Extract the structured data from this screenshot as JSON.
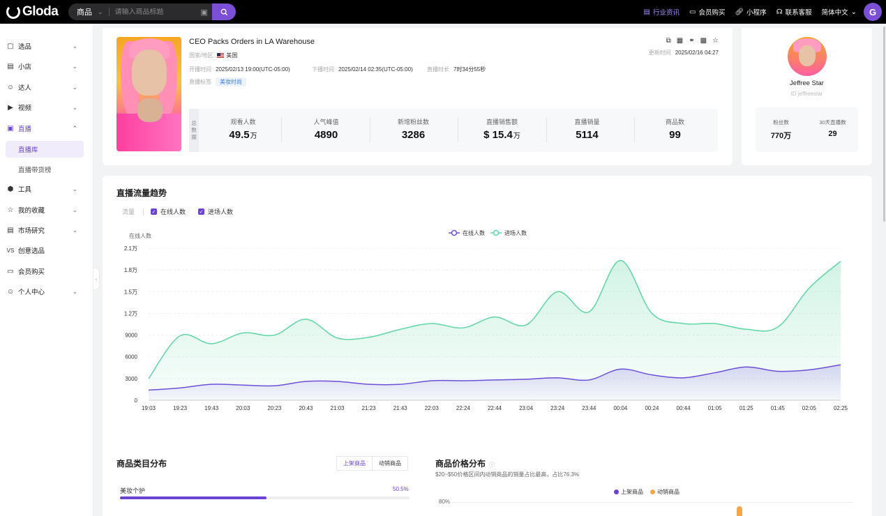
{
  "header": {
    "logo_text": "Gloda",
    "search_category": "商品",
    "search_placeholder": "请输入商品标题",
    "nav": [
      {
        "label": "行业资讯",
        "icon": "news-icon"
      },
      {
        "label": "会员购买",
        "icon": "card-icon"
      },
      {
        "label": "小程序",
        "icon": "link-icon"
      },
      {
        "label": "联系客服",
        "icon": "headset-icon"
      },
      {
        "label": "简体中文",
        "icon": "chevron-down-icon"
      }
    ],
    "avatar_letter": "G",
    "accent_color": "#6b43d2"
  },
  "sidebar": {
    "items": [
      {
        "label": "选品",
        "icon": "select-icon",
        "expandable": true
      },
      {
        "label": "小店",
        "icon": "shop-icon",
        "expandable": true
      },
      {
        "label": "达人",
        "icon": "user-icon",
        "expandable": true
      },
      {
        "label": "视频",
        "icon": "video-icon",
        "expandable": true
      },
      {
        "label": "直播",
        "icon": "live-icon",
        "expandable": true,
        "expanded": true
      },
      {
        "label": "工具",
        "icon": "tool-icon",
        "expandable": true
      },
      {
        "label": "我的收藏",
        "icon": "star-icon",
        "expandable": true
      },
      {
        "label": "市场研究",
        "icon": "research-icon",
        "expandable": true
      },
      {
        "label": "创意选品",
        "icon": "vs-icon",
        "expandable": false
      },
      {
        "label": "会员购买",
        "icon": "card-icon",
        "expandable": false
      },
      {
        "label": "个人中心",
        "icon": "smile-icon",
        "expandable": true
      }
    ],
    "sub_items": [
      "直播库",
      "直播带货榜"
    ],
    "active_sub": "直播库"
  },
  "live": {
    "title": "CEO Packs Orders in LA Warehouse",
    "country_label": "国家/地区",
    "country": "美国",
    "start_label": "开播时间",
    "start": "2025/02/13 19:00(UTC-05:00)",
    "end_label": "下播时间",
    "end": "2025/02/14 02:35(UTC-05:00)",
    "duration_label": "直播时长",
    "duration": "7时34分55秒",
    "tag_label": "直播标签",
    "tag": "美妆时尚",
    "update_label": "更新时间",
    "update": "2025/02/16 04:27",
    "stats_side": "总数据",
    "stats": [
      {
        "label": "观看人数",
        "value": "49.5",
        "unit": "万",
        "prefix": ""
      },
      {
        "label": "人气峰值",
        "value": "4890",
        "unit": "",
        "prefix": ""
      },
      {
        "label": "新增粉丝数",
        "value": "3286",
        "unit": "",
        "prefix": ""
      },
      {
        "label": "直播销售额",
        "value": "15.4",
        "unit": "万",
        "prefix": "$"
      },
      {
        "label": "直播销量",
        "value": "5114",
        "unit": "",
        "prefix": ""
      },
      {
        "label": "商品数",
        "value": "99",
        "unit": "",
        "prefix": ""
      }
    ]
  },
  "profile": {
    "name": "Jeffree Star",
    "id": "ID jeffreestar",
    "stats": [
      {
        "label": "粉丝数",
        "value": "770万"
      },
      {
        "label": "30天直播数",
        "value": "29"
      }
    ]
  },
  "trend": {
    "title": "直播流量趋势",
    "filter_label": "流量",
    "filters": [
      "在线人数",
      "进场人数"
    ]
  },
  "chart_data": {
    "type": "area",
    "ylabel": "在线人数",
    "y_ticks": [
      "0",
      "3000",
      "6000",
      "9000",
      "1.2万",
      "1.5万",
      "1.8万",
      "2.1万"
    ],
    "ylim": [
      0,
      21000
    ],
    "x": [
      "19:03",
      "19:23",
      "19:43",
      "20:03",
      "20:23",
      "20:43",
      "21:03",
      "21:23",
      "21:43",
      "22:03",
      "22:24",
      "22:44",
      "23:04",
      "23:24",
      "23:44",
      "00:04",
      "00:24",
      "00:44",
      "01:05",
      "01:25",
      "01:45",
      "02:05",
      "02:25"
    ],
    "legend_position": "top-center",
    "grid": true,
    "series": [
      {
        "name": "在线人数",
        "color": "#6b4fd8",
        "values": [
          1400,
          1700,
          2200,
          2100,
          2000,
          2600,
          2600,
          2200,
          2200,
          2700,
          2700,
          2800,
          2900,
          3100,
          2800,
          4300,
          3500,
          3100,
          3800,
          4600,
          4000,
          4200,
          4900
        ]
      },
      {
        "name": "进场人数",
        "color": "#5fd6a4",
        "values": [
          3000,
          8900,
          7800,
          9300,
          9000,
          11200,
          8600,
          8700,
          9800,
          10600,
          10000,
          11500,
          10400,
          15000,
          12200,
          19300,
          12000,
          10600,
          10600,
          9800,
          10100,
          15500,
          19200
        ]
      }
    ]
  },
  "category": {
    "title": "商品类目分布",
    "tabs": [
      "上架商品",
      "动销商品"
    ],
    "active_tab": "上架商品",
    "rows": [
      {
        "label": "美妆个护",
        "pct": "50.5%",
        "value": 50.5
      }
    ]
  },
  "price": {
    "title": "商品价格分布",
    "note": "$20~$50价格区间内动销商品的销量占比最高，占比76.3%",
    "legend": [
      {
        "label": "上架商品",
        "color": "#6b43d2"
      },
      {
        "label": "动销商品",
        "color": "#f5a54a"
      }
    ],
    "y_top": "80%"
  }
}
